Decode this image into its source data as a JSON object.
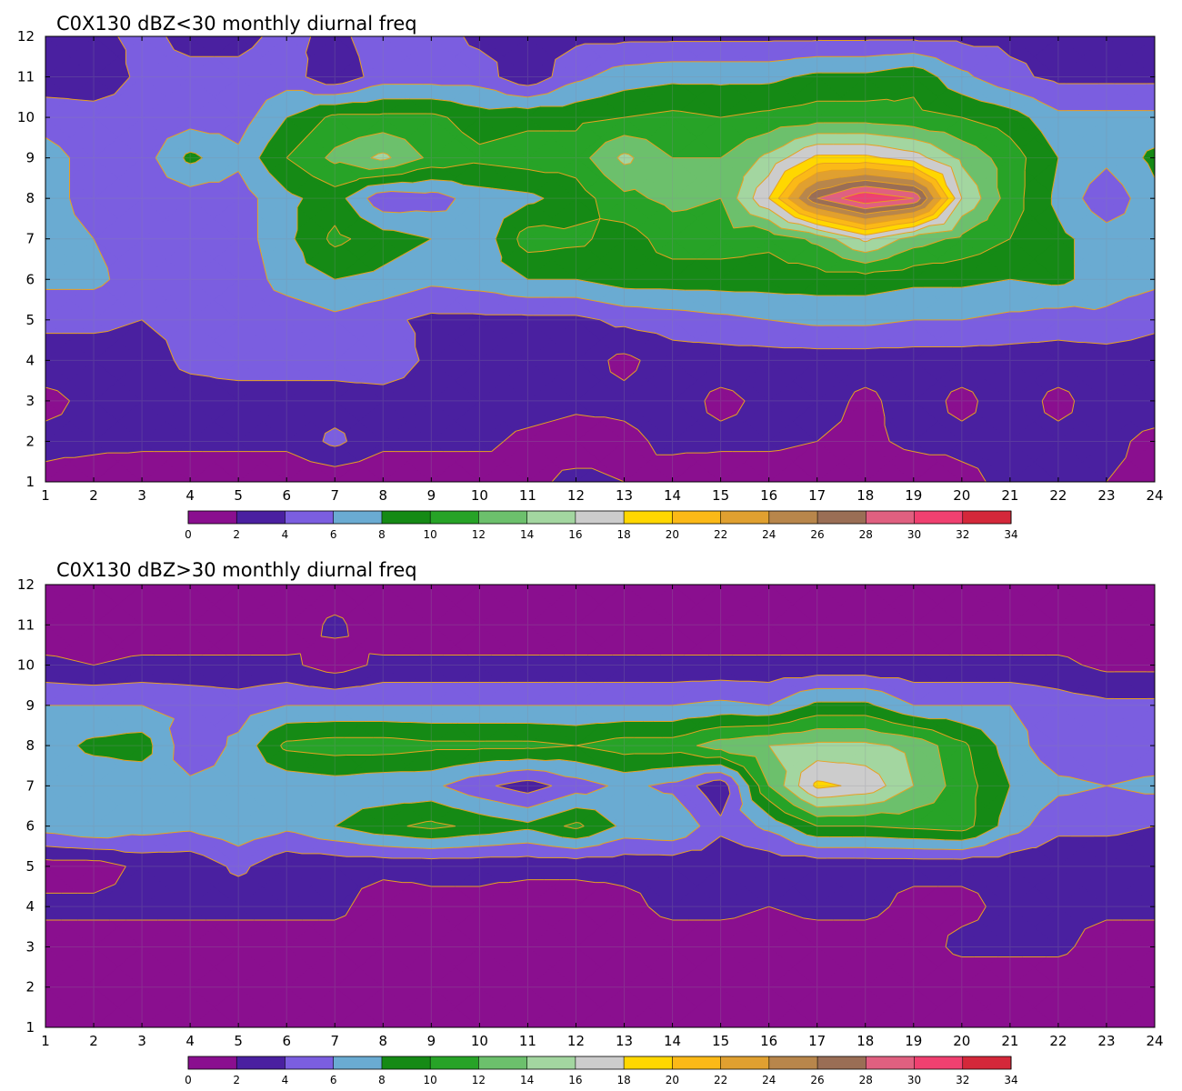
{
  "palette": {
    "levels": [
      0,
      2,
      4,
      6,
      8,
      10,
      12,
      14,
      16,
      18,
      20,
      22,
      24,
      26,
      28,
      30,
      32,
      34
    ],
    "colors": [
      "#8a0f8f",
      "#4a20a0",
      "#7b5ee0",
      "#6aabd2",
      "#158a15",
      "#27a327",
      "#6cc06c",
      "#a3d6a0",
      "#cccccc",
      "#ffd700",
      "#fbb917",
      "#e0a030",
      "#b8864b",
      "#9a6e55",
      "#e06080",
      "#f04070",
      "#d4283a"
    ],
    "contour_line": "#e8a020",
    "grid_line": "#8a8a9a"
  },
  "chart_data": [
    {
      "type": "heatmap",
      "title": "C0X130 dBZ<30 monthly diurnal freq",
      "x_ticks": [
        1,
        2,
        3,
        4,
        5,
        6,
        7,
        8,
        9,
        10,
        11,
        12,
        13,
        14,
        15,
        16,
        17,
        18,
        19,
        20,
        21,
        22,
        23,
        24
      ],
      "y_ticks": [
        1,
        2,
        3,
        4,
        5,
        6,
        7,
        8,
        9,
        10,
        11,
        12
      ],
      "xlim": [
        1,
        24
      ],
      "ylim": [
        1,
        12
      ],
      "colorbar_ticks": [
        0,
        2,
        4,
        6,
        8,
        10,
        12,
        14,
        16,
        18,
        20,
        22,
        24,
        26,
        28,
        30,
        32,
        34
      ],
      "xlabel": "",
      "ylabel": "",
      "values": [
        [
          1.5,
          1.0,
          0.5,
          0.5,
          0.5,
          0.5,
          0.5,
          0.5,
          0.5,
          0.5,
          1.5,
          2.5,
          2.0,
          1.0,
          0.5,
          0.5,
          0.5,
          0.5,
          0.5,
          1.5,
          2.5,
          2.5,
          2.0,
          1.5
        ],
        [
          2.5,
          2.5,
          2.5,
          2.5,
          2.5,
          2.5,
          4.5,
          2.5,
          2.5,
          2.5,
          1.5,
          1.0,
          1.5,
          2.5,
          2.5,
          2.5,
          2.0,
          1.5,
          2.5,
          2.5,
          2.5,
          2.5,
          2.5,
          1.5
        ],
        [
          1.5,
          2.5,
          3.0,
          3.0,
          3.0,
          3.0,
          3.0,
          3.0,
          3.0,
          3.0,
          3.0,
          2.5,
          2.5,
          3.0,
          1.5,
          2.5,
          3.0,
          1.5,
          3.0,
          1.5,
          3.0,
          1.5,
          3.0,
          3.0
        ],
        [
          3.0,
          3.0,
          3.0,
          4.5,
          5.0,
          5.0,
          5.0,
          5.5,
          3.5,
          3.5,
          3.5,
          3.0,
          1.5,
          3.0,
          3.0,
          3.0,
          3.0,
          3.0,
          3.0,
          3.0,
          3.0,
          3.0,
          3.0,
          3.0
        ],
        [
          4.5,
          4.5,
          4.0,
          4.5,
          4.5,
          4.5,
          5.5,
          4.5,
          3.5,
          3.5,
          3.5,
          3.5,
          4.5,
          5.0,
          5.5,
          6.0,
          6.5,
          6.5,
          6.0,
          6.0,
          5.5,
          5.0,
          5.5,
          4.5
        ],
        [
          6.5,
          6.5,
          5.0,
          5.0,
          4.5,
          7.0,
          8.0,
          7.5,
          6.5,
          7.0,
          8.0,
          8.0,
          9.0,
          9.0,
          9.0,
          9.0,
          9.0,
          9.0,
          8.5,
          8.5,
          8.0,
          8.5,
          7.0,
          6.5
        ],
        [
          6.5,
          6.0,
          5.0,
          5.0,
          5.0,
          7.5,
          10.5,
          9.0,
          8.0,
          6.5,
          11.0,
          10.5,
          9.0,
          11.0,
          11.0,
          10.5,
          12.5,
          16.5,
          13.0,
          11.5,
          10.0,
          8.5,
          7.0,
          7.0
        ],
        [
          6.5,
          5.5,
          5.0,
          5.0,
          5.0,
          7.5,
          9.0,
          4.5,
          5.0,
          7.0,
          7.5,
          9.0,
          11.5,
          12.5,
          12.0,
          18.0,
          28.0,
          32.0,
          30.0,
          16.0,
          11.0,
          7.5,
          4.5,
          7.5
        ],
        [
          6.5,
          5.5,
          5.0,
          8.5,
          6.5,
          10.0,
          12.5,
          14.5,
          11.5,
          10.5,
          11.0,
          11.0,
          14.5,
          12.0,
          12.0,
          14.5,
          18.5,
          18.5,
          17.0,
          13.5,
          11.0,
          8.0,
          6.5,
          8.5
        ],
        [
          5.5,
          5.0,
          5.0,
          5.0,
          5.0,
          8.0,
          10.5,
          10.5,
          10.5,
          9.0,
          9.5,
          9.5,
          10.0,
          10.5,
          10.0,
          10.5,
          11.0,
          11.0,
          10.5,
          10.0,
          9.0,
          6.5,
          6.5,
          6.5
        ],
        [
          2.5,
          2.5,
          4.5,
          4.5,
          4.5,
          5.0,
          2.5,
          5.0,
          5.0,
          5.0,
          2.5,
          5.5,
          7.0,
          7.5,
          7.5,
          7.5,
          8.5,
          8.5,
          9.5,
          6.5,
          4.5,
          3.5,
          3.5,
          3.5
        ],
        [
          3.5,
          3.5,
          4.5,
          3.5,
          3.5,
          4.5,
          3.5,
          5.0,
          5.0,
          3.5,
          3.5,
          3.5,
          3.5,
          3.5,
          3.5,
          3.5,
          3.5,
          3.5,
          3.5,
          3.5,
          3.5,
          3.5,
          3.5,
          3.5
        ]
      ]
    },
    {
      "type": "heatmap",
      "title": "C0X130 dBZ>30 monthly diurnal freq",
      "x_ticks": [
        1,
        2,
        3,
        4,
        5,
        6,
        7,
        8,
        9,
        10,
        11,
        12,
        13,
        14,
        15,
        16,
        17,
        18,
        19,
        20,
        21,
        22,
        23,
        24
      ],
      "y_ticks": [
        1,
        2,
        3,
        4,
        5,
        6,
        7,
        8,
        9,
        10,
        11,
        12
      ],
      "xlim": [
        1,
        24
      ],
      "ylim": [
        1,
        12
      ],
      "colorbar_ticks": [
        0,
        2,
        4,
        6,
        8,
        10,
        12,
        14,
        16,
        18,
        20,
        22,
        24,
        26,
        28,
        30,
        32,
        34
      ],
      "xlabel": "",
      "ylabel": "",
      "values": [
        [
          0.5,
          0.5,
          0.5,
          0.5,
          0.5,
          0.5,
          0.5,
          0.5,
          0.5,
          0.5,
          0.5,
          0.5,
          0.5,
          0.5,
          0.5,
          0.5,
          0.5,
          0.5,
          0.5,
          0.5,
          0.5,
          0.5,
          0.5,
          0.5
        ],
        [
          0.5,
          0.5,
          0.5,
          0.5,
          0.5,
          0.5,
          0.5,
          0.5,
          0.5,
          0.5,
          0.5,
          0.5,
          0.5,
          0.5,
          0.5,
          0.5,
          0.5,
          0.5,
          0.5,
          0.5,
          0.5,
          0.5,
          0.5,
          0.5
        ],
        [
          1.0,
          1.0,
          1.0,
          1.0,
          1.0,
          1.0,
          1.0,
          1.0,
          1.0,
          1.0,
          1.0,
          1.0,
          1.0,
          1.0,
          1.0,
          1.0,
          1.0,
          1.0,
          1.0,
          2.5,
          2.5,
          2.5,
          1.0,
          1.0
        ],
        [
          2.5,
          2.5,
          2.5,
          2.5,
          2.5,
          2.5,
          2.5,
          1.0,
          1.5,
          1.5,
          1.0,
          1.0,
          1.5,
          2.5,
          2.5,
          2.0,
          2.5,
          2.5,
          1.5,
          1.5,
          2.5,
          2.5,
          2.5,
          2.5
        ],
        [
          1.0,
          1.0,
          2.5,
          2.5,
          4.5,
          2.5,
          2.5,
          2.5,
          2.5,
          2.5,
          2.5,
          2.5,
          2.5,
          2.5,
          2.5,
          2.5,
          2.5,
          2.5,
          2.5,
          2.5,
          2.5,
          2.5,
          2.5,
          2.5
        ],
        [
          7.0,
          8.0,
          7.0,
          6.5,
          7.5,
          6.5,
          8.0,
          9.5,
          10.5,
          9.5,
          8.5,
          10.5,
          7.5,
          8.0,
          4.5,
          6.5,
          10.0,
          10.0,
          10.5,
          11.0,
          7.0,
          4.5,
          4.5,
          4.0
        ],
        [
          6.5,
          6.5,
          6.5,
          6.5,
          6.5,
          6.5,
          7.0,
          6.5,
          6.5,
          4.5,
          3.0,
          5.0,
          6.5,
          5.5,
          2.5,
          12.0,
          18.5,
          17.5,
          14.0,
          11.0,
          8.0,
          6.5,
          6.0,
          6.5
        ],
        [
          7.0,
          8.5,
          9.0,
          4.5,
          6.5,
          10.5,
          11.0,
          11.0,
          10.5,
          10.5,
          10.5,
          10.0,
          11.0,
          11.0,
          13.0,
          14.0,
          14.5,
          14.5,
          13.5,
          10.5,
          7.0,
          4.5,
          4.5,
          4.5
        ],
        [
          6.0,
          6.0,
          6.0,
          5.5,
          5.0,
          6.0,
          6.0,
          6.0,
          6.0,
          6.0,
          6.0,
          6.0,
          6.0,
          6.0,
          6.5,
          6.0,
          8.5,
          8.5,
          6.0,
          6.0,
          6.0,
          5.0,
          4.5,
          4.5
        ],
        [
          2.5,
          2.0,
          2.5,
          2.5,
          2.5,
          2.5,
          1.0,
          2.5,
          2.5,
          2.5,
          2.5,
          2.5,
          2.5,
          2.5,
          2.5,
          2.5,
          2.5,
          2.5,
          2.5,
          2.5,
          2.5,
          2.5,
          1.5,
          1.5
        ],
        [
          0.5,
          0.5,
          0.5,
          0.5,
          0.5,
          0.5,
          2.5,
          0.5,
          0.5,
          0.5,
          0.5,
          0.5,
          0.5,
          0.5,
          0.5,
          0.5,
          0.5,
          0.5,
          0.5,
          0.5,
          0.5,
          0.5,
          0.5,
          0.5
        ],
        [
          0.5,
          0.5,
          0.5,
          0.5,
          0.5,
          0.5,
          0.5,
          0.5,
          0.5,
          0.5,
          0.5,
          0.5,
          0.5,
          0.5,
          0.5,
          0.5,
          0.5,
          0.5,
          0.5,
          0.5,
          0.5,
          0.5,
          0.5,
          0.5
        ]
      ]
    }
  ]
}
